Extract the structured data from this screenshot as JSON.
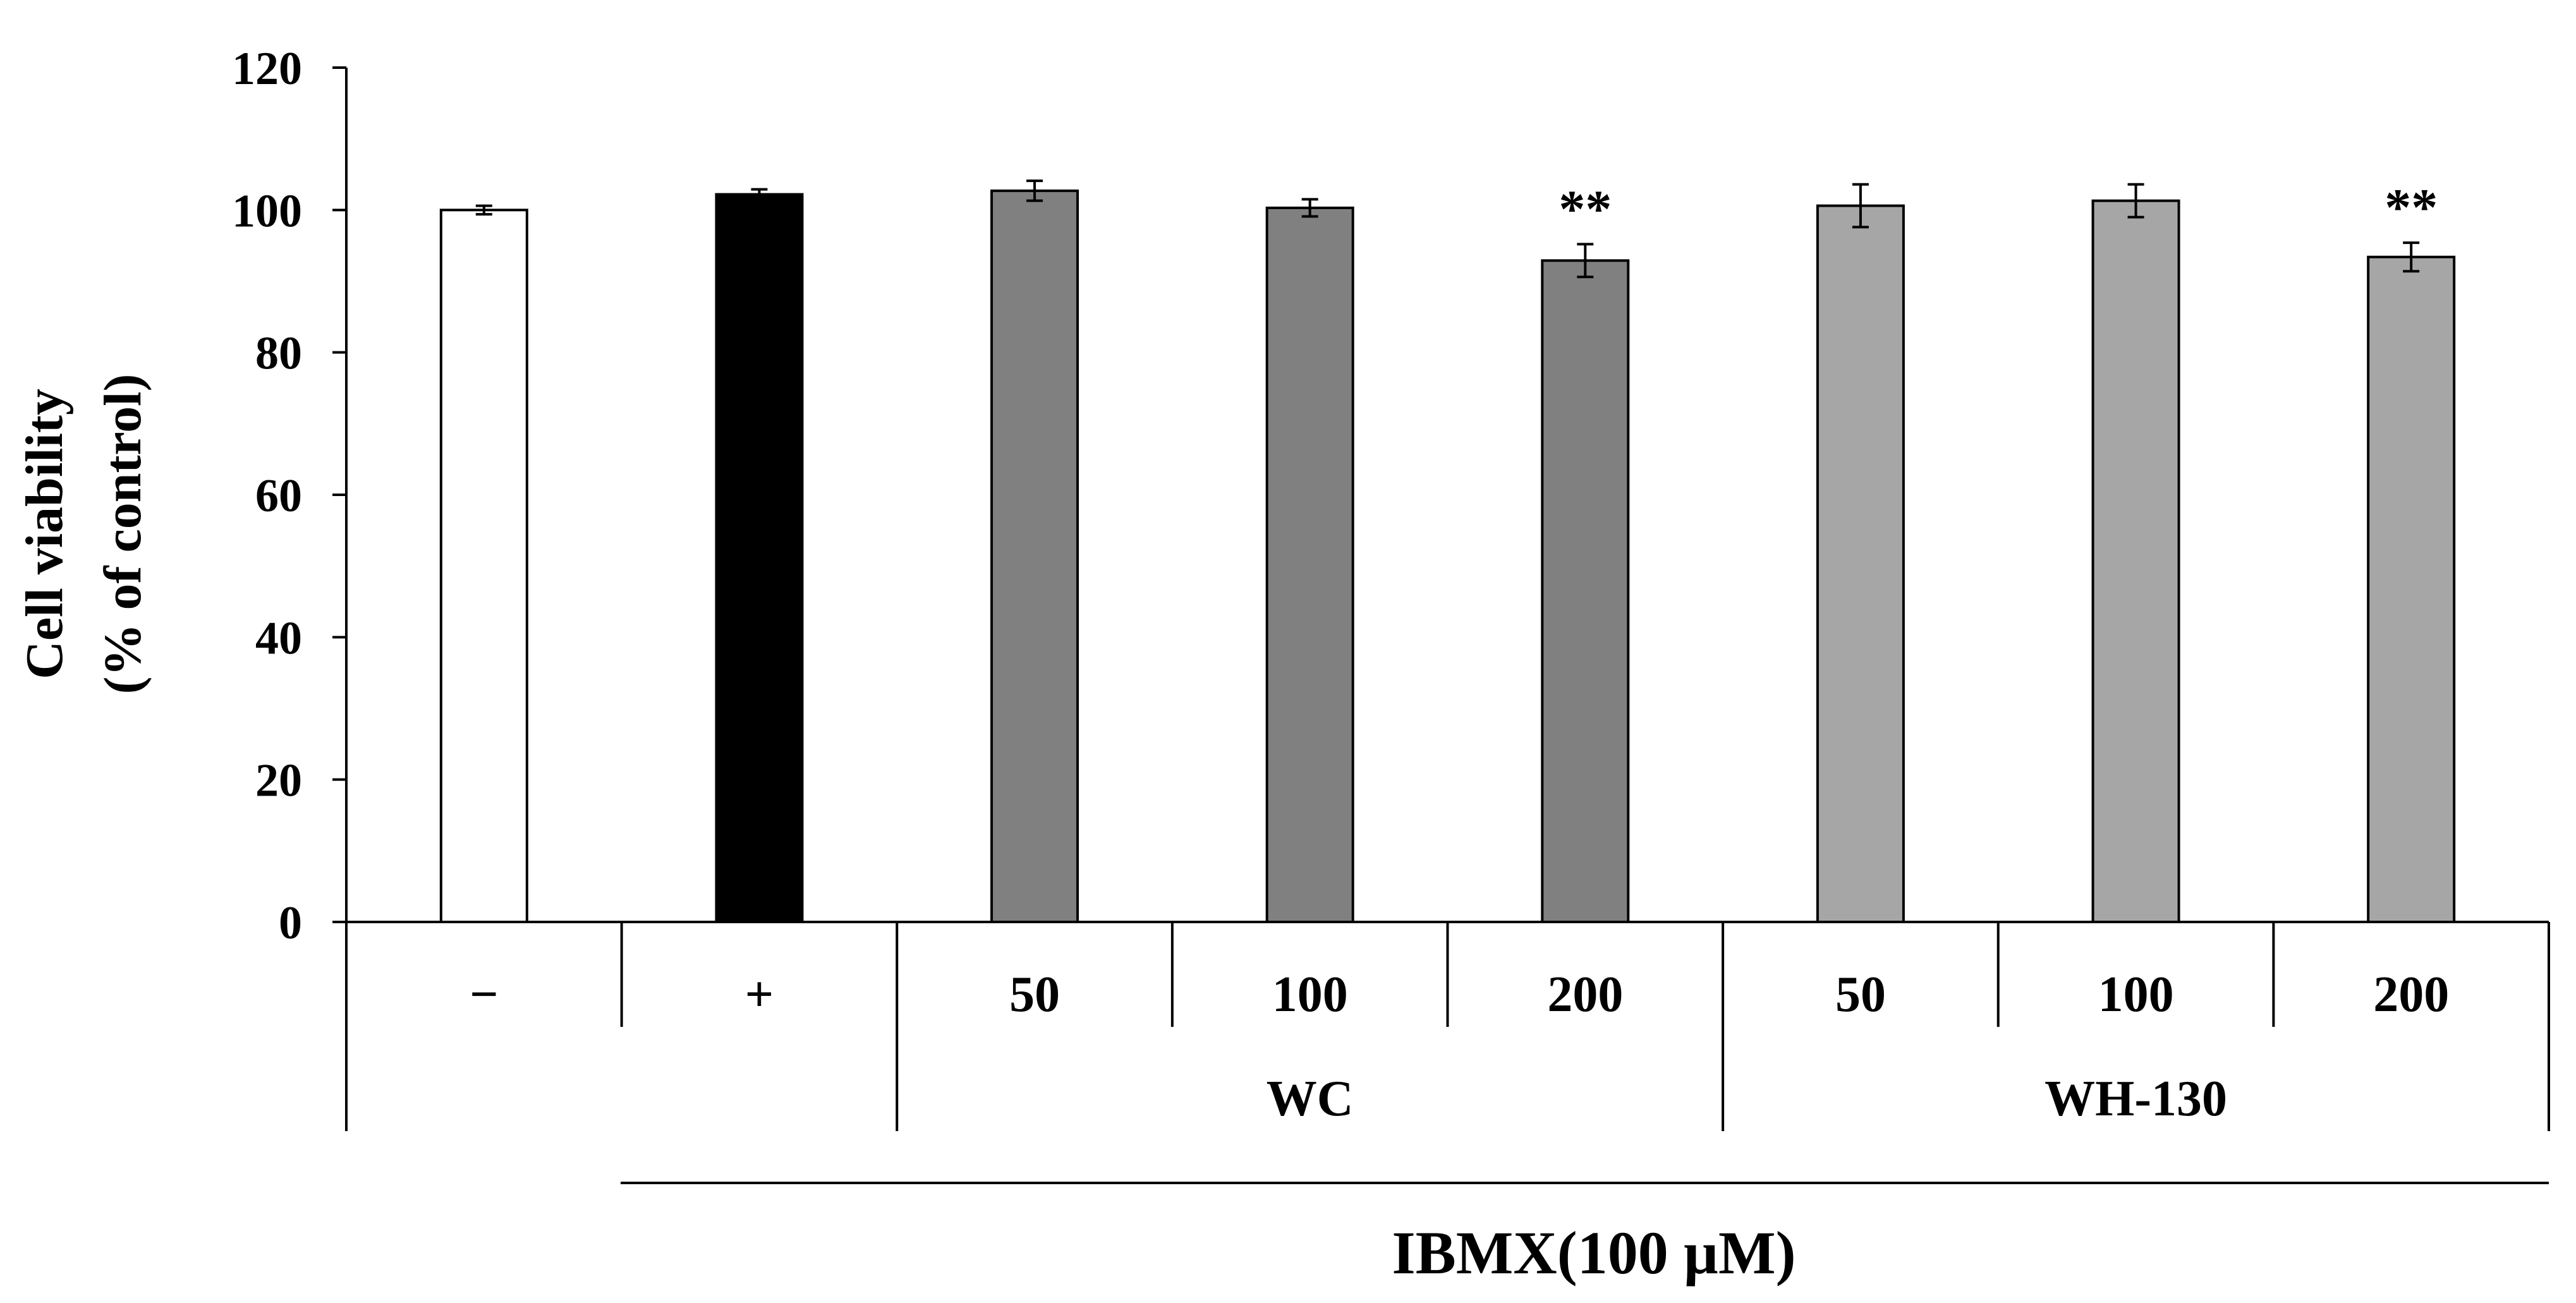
{
  "chart_data": {
    "type": "bar",
    "ylabel_line1": "Cell viability",
    "ylabel_line2": "(% of control)",
    "ylim": [
      0,
      120
    ],
    "yticks": [
      0,
      20,
      40,
      60,
      80,
      100,
      120
    ],
    "categories": [
      "−",
      "+",
      "50",
      "100",
      "200",
      "50",
      "100",
      "200"
    ],
    "values": [
      100,
      102.2,
      102.7,
      100.3,
      92.9,
      100.6,
      101.3,
      93.4
    ],
    "errors": [
      0.6,
      0.7,
      1.4,
      1.2,
      2.3,
      3.0,
      2.3,
      2.0
    ],
    "significance": [
      "",
      "",
      "",
      "",
      "**",
      "",
      "",
      "**"
    ],
    "bar_colors": [
      "#ffffff",
      "#000000",
      "#808080",
      "#808080",
      "#808080",
      "#a6a6a6",
      "#a6a6a6",
      "#a6a6a6"
    ],
    "groups": [
      {
        "label": "",
        "start": 0,
        "end": 1
      },
      {
        "label": "WC",
        "start": 2,
        "end": 4
      },
      {
        "label": "WH-130",
        "start": 5,
        "end": 7
      }
    ],
    "treatment_label": "IBMX(100 µM)",
    "grid": false,
    "legend": "none"
  }
}
